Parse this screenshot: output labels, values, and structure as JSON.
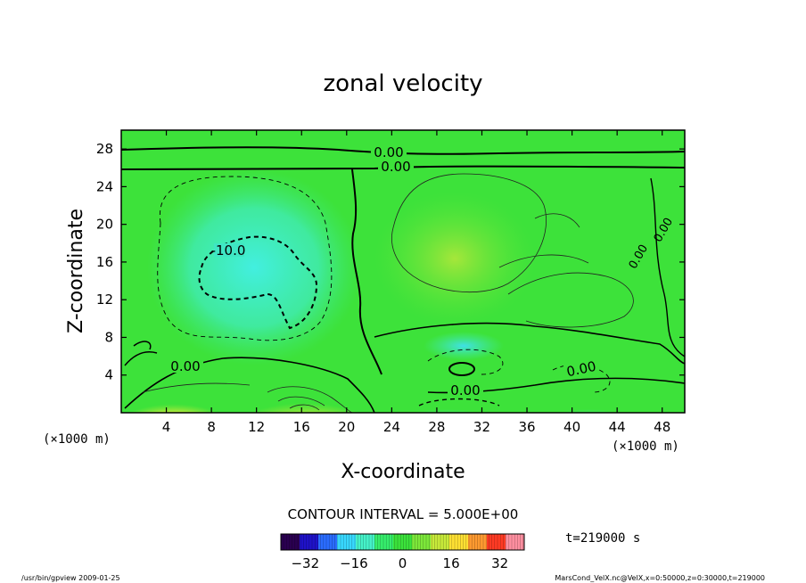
{
  "chart_data": {
    "type": "heatmap",
    "title": "zonal velocity",
    "xlabel": "X-coordinate",
    "ylabel": "Z-coordinate",
    "x_unit": "(×1000 m)",
    "y_unit": "(×1000 m)",
    "xlim": [
      0,
      50
    ],
    "ylim": [
      0,
      30
    ],
    "x_ticks": [
      "4",
      "8",
      "12",
      "16",
      "20",
      "24",
      "28",
      "32",
      "36",
      "40",
      "44",
      "48"
    ],
    "y_ticks": [
      "4",
      "8",
      "12",
      "16",
      "20",
      "24",
      "28"
    ],
    "contour_labels": [
      "0.00",
      "0.00",
      "-10.0",
      "0.00",
      "0.00",
      "0.00",
      "0.00",
      "0.00"
    ],
    "contour_interval_text": "CONTOUR INTERVAL = 5.000E+00",
    "colorbar": {
      "range": [
        -40,
        40
      ],
      "tick_labels": [
        "-32",
        "-16",
        "0",
        "16",
        "32"
      ],
      "colors": [
        "#2a0050",
        "#1f12c8",
        "#2a6cff",
        "#38d8ff",
        "#45f2c9",
        "#36ee6c",
        "#3be23b",
        "#7de83a",
        "#c8ea3a",
        "#ffe033",
        "#ff9a30",
        "#ff3b24",
        "#ff8fa0"
      ]
    },
    "time_label": "t=219000 s",
    "footer_left": "/usr/bin/gpview  2009-01-25",
    "footer_right": "MarsCond_VelX.nc@VelX,x=0:50000,z=0:30000,t=219000"
  }
}
